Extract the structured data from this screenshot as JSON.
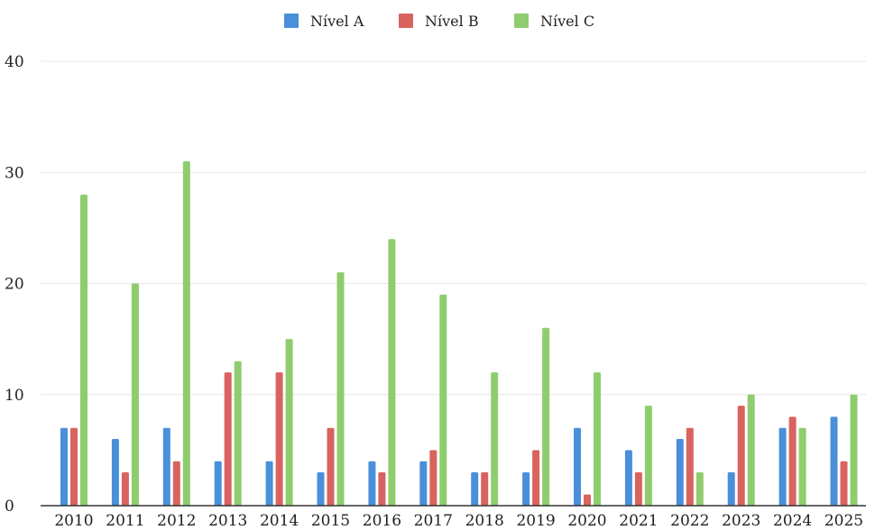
{
  "chart_data": {
    "type": "bar",
    "title": "",
    "xlabel": "",
    "ylabel": "",
    "categories": [
      "2010",
      "2011",
      "2012",
      "2013",
      "2014",
      "2015",
      "2016",
      "2017",
      "2018",
      "2019",
      "2020",
      "2021",
      "2022",
      "2023",
      "2024",
      "2025"
    ],
    "series": [
      {
        "name": "Nível A",
        "color": "#4a8fd9",
        "values": [
          7,
          6,
          7,
          4,
          4,
          3,
          4,
          4,
          3,
          3,
          7,
          5,
          6,
          3,
          7,
          8
        ]
      },
      {
        "name": "Nível B",
        "color": "#d9635f",
        "values": [
          7,
          3,
          4,
          12,
          12,
          7,
          3,
          5,
          3,
          5,
          1,
          3,
          7,
          9,
          8,
          4
        ]
      },
      {
        "name": "Nível C",
        "color": "#8fcc6e",
        "values": [
          28,
          20,
          31,
          13,
          15,
          21,
          24,
          19,
          12,
          16,
          12,
          9,
          3,
          10,
          7,
          10
        ]
      }
    ],
    "ylim": [
      0,
      40
    ],
    "yticks": [
      0,
      10,
      20,
      30,
      40
    ],
    "grid": true,
    "legend": "top-center"
  }
}
